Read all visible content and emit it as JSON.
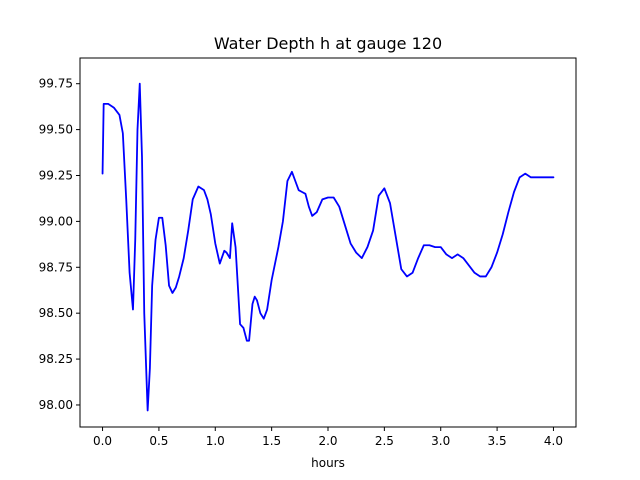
{
  "chart_data": {
    "type": "line",
    "title": "Water Depth h at gauge 120",
    "xlabel": "hours",
    "ylabel": "",
    "xlim": [
      -0.2,
      4.2
    ],
    "ylim": [
      97.88,
      99.89
    ],
    "xticks": [
      0.0,
      0.5,
      1.0,
      1.5,
      2.0,
      2.5,
      3.0,
      3.5,
      4.0
    ],
    "xtick_labels": [
      "0.0",
      "0.5",
      "1.0",
      "1.5",
      "2.0",
      "2.5",
      "3.0",
      "3.5",
      "4.0"
    ],
    "yticks": [
      98.0,
      98.25,
      98.5,
      98.75,
      99.0,
      99.25,
      99.5,
      99.75
    ],
    "ytick_labels": [
      "98.00",
      "98.25",
      "98.50",
      "98.75",
      "99.00",
      "99.25",
      "99.50",
      "99.75"
    ],
    "grid": false,
    "line_color": "#0000ff",
    "series": [
      {
        "x": [
          0.0,
          0.01,
          0.05,
          0.1,
          0.15,
          0.18,
          0.21,
          0.24,
          0.27,
          0.29,
          0.31,
          0.33,
          0.35,
          0.37,
          0.4,
          0.42,
          0.44,
          0.47,
          0.5,
          0.53,
          0.56,
          0.59,
          0.62,
          0.65,
          0.68,
          0.72,
          0.76,
          0.8,
          0.85,
          0.9,
          0.93,
          0.96,
          1.0,
          1.04,
          1.08,
          1.1,
          1.13,
          1.15,
          1.18,
          1.2,
          1.22,
          1.25,
          1.28,
          1.3,
          1.33,
          1.35,
          1.37,
          1.4,
          1.43,
          1.46,
          1.5,
          1.53,
          1.56,
          1.6,
          1.64,
          1.68,
          1.71,
          1.74,
          1.77,
          1.8,
          1.83,
          1.86,
          1.9,
          1.95,
          2.0,
          2.05,
          2.1,
          2.15,
          2.2,
          2.25,
          2.3,
          2.35,
          2.4,
          2.45,
          2.5,
          2.55,
          2.6,
          2.65,
          2.7,
          2.75,
          2.8,
          2.85,
          2.9,
          2.95,
          3.0,
          3.05,
          3.1,
          3.15,
          3.2,
          3.25,
          3.3,
          3.35,
          3.4,
          3.45,
          3.5,
          3.55,
          3.6,
          3.65,
          3.7,
          3.75,
          3.8,
          3.85,
          3.9,
          3.95,
          4.0
        ],
        "y": [
          99.26,
          99.64,
          99.64,
          99.62,
          99.58,
          99.48,
          99.12,
          98.72,
          98.52,
          98.9,
          99.5,
          99.75,
          99.35,
          98.5,
          97.97,
          98.2,
          98.65,
          98.9,
          99.02,
          99.02,
          98.87,
          98.65,
          98.61,
          98.64,
          98.7,
          98.8,
          98.95,
          99.12,
          99.19,
          99.17,
          99.12,
          99.04,
          98.88,
          98.77,
          98.84,
          98.83,
          98.8,
          98.99,
          98.86,
          98.65,
          98.44,
          98.42,
          98.35,
          98.35,
          98.55,
          98.59,
          98.57,
          98.5,
          98.47,
          98.52,
          98.68,
          98.77,
          98.86,
          99.0,
          99.22,
          99.27,
          99.22,
          99.17,
          99.16,
          99.15,
          99.08,
          99.03,
          99.05,
          99.12,
          99.13,
          99.13,
          99.08,
          98.98,
          98.88,
          98.83,
          98.8,
          98.86,
          98.95,
          99.14,
          99.18,
          99.1,
          98.92,
          98.74,
          98.7,
          98.72,
          98.8,
          98.87,
          98.87,
          98.86,
          98.86,
          98.82,
          98.8,
          98.82,
          98.8,
          98.76,
          98.72,
          98.7,
          98.7,
          98.75,
          98.83,
          98.93,
          99.05,
          99.16,
          99.24,
          99.26,
          99.24,
          99.24,
          99.24,
          99.24,
          99.24
        ]
      }
    ]
  }
}
